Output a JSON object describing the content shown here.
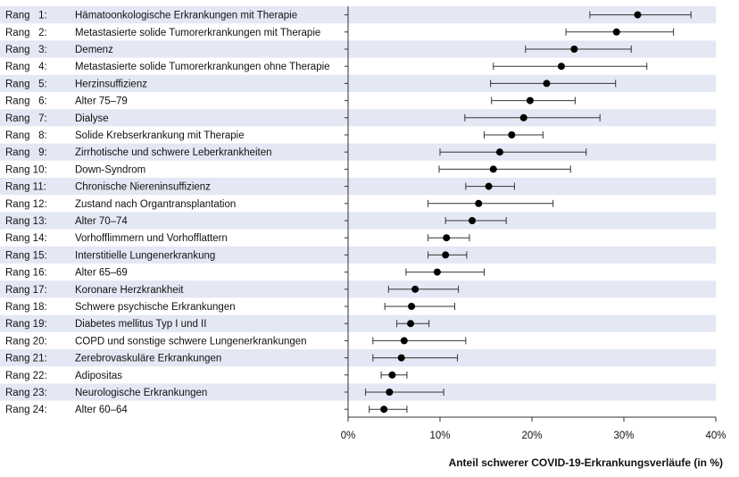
{
  "chart_data": {
    "type": "scatter",
    "style": "forest-plot with error bars",
    "xlabel": "Anteil schwerer COVID-19-Erkrankungsverläufe (in %)",
    "xlim": [
      0,
      40
    ],
    "xticks": [
      "0%",
      "10%",
      "20%",
      "30%",
      "40%"
    ],
    "band_color": "#e4e8f4",
    "rows": [
      {
        "rank": "Rang   1:",
        "name": "Hämatoonkologische Erkrankungen mit Therapie",
        "value": 31.5,
        "low": 26.3,
        "high": 37.3
      },
      {
        "rank": "Rang   2:",
        "name": "Metastasierte solide Tumorerkrankungen mit Therapie",
        "value": 29.2,
        "low": 23.7,
        "high": 35.4
      },
      {
        "rank": "Rang   3:",
        "name": "Demenz",
        "value": 24.6,
        "low": 19.3,
        "high": 30.8
      },
      {
        "rank": "Rang   4:",
        "name": "Metastasierte solide Tumorerkrankungen ohne Therapie",
        "value": 23.2,
        "low": 15.8,
        "high": 32.5
      },
      {
        "rank": "Rang   5:",
        "name": "Herzinsuffizienz",
        "value": 21.6,
        "low": 15.5,
        "high": 29.1
      },
      {
        "rank": "Rang   6:",
        "name": "Alter 75–79",
        "value": 19.8,
        "low": 15.6,
        "high": 24.7
      },
      {
        "rank": "Rang   7:",
        "name": "Dialyse",
        "value": 19.1,
        "low": 12.7,
        "high": 27.4
      },
      {
        "rank": "Rang   8:",
        "name": "Solide Krebserkrankung mit Therapie",
        "value": 17.8,
        "low": 14.8,
        "high": 21.2
      },
      {
        "rank": "Rang   9:",
        "name": "Zirrhotische und schwere Leberkrankheiten",
        "value": 16.5,
        "low": 10.0,
        "high": 25.9
      },
      {
        "rank": "Rang 10:",
        "name": "Down-Syndrom",
        "value": 15.8,
        "low": 9.9,
        "high": 24.2
      },
      {
        "rank": "Rang 11:",
        "name": "Chronische Niereninsuffizienz",
        "value": 15.3,
        "low": 12.8,
        "high": 18.1
      },
      {
        "rank": "Rang 12:",
        "name": "Zustand nach Organtransplantation",
        "value": 14.2,
        "low": 8.7,
        "high": 22.3
      },
      {
        "rank": "Rang 13:",
        "name": "Alter 70–74",
        "value": 13.5,
        "low": 10.6,
        "high": 17.2
      },
      {
        "rank": "Rang 14:",
        "name": "Vorhofflimmern und Vorhofflattern",
        "value": 10.7,
        "low": 8.7,
        "high": 13.2
      },
      {
        "rank": "Rang 15:",
        "name": "Interstitielle Lungenerkrankung",
        "value": 10.6,
        "low": 8.7,
        "high": 12.9
      },
      {
        "rank": "Rang 16:",
        "name": "Alter 65–69",
        "value": 9.7,
        "low": 6.3,
        "high": 14.8
      },
      {
        "rank": "Rang 17:",
        "name": "Koronare Herzkrankheit",
        "value": 7.3,
        "low": 4.4,
        "high": 12.0
      },
      {
        "rank": "Rang 18:",
        "name": "Schwere psychische Erkrankungen",
        "value": 6.9,
        "low": 4.0,
        "high": 11.6
      },
      {
        "rank": "Rang 19:",
        "name": "Diabetes mellitus Typ I und II",
        "value": 6.8,
        "low": 5.3,
        "high": 8.8
      },
      {
        "rank": "Rang 20:",
        "name": "COPD und sonstige schwere Lungenerkrankungen",
        "value": 6.1,
        "low": 2.7,
        "high": 12.8
      },
      {
        "rank": "Rang 21:",
        "name": "Zerebrovaskuläre Erkrankungen",
        "value": 5.8,
        "low": 2.7,
        "high": 11.9
      },
      {
        "rank": "Rang 22:",
        "name": "Adipositas",
        "value": 4.8,
        "low": 3.6,
        "high": 6.4
      },
      {
        "rank": "Rang 23:",
        "name": "Neurologische Erkrankungen",
        "value": 4.5,
        "low": 1.9,
        "high": 10.4
      },
      {
        "rank": "Rang 24:",
        "name": "Alter 60–64",
        "value": 3.9,
        "low": 2.3,
        "high": 6.4
      }
    ]
  }
}
